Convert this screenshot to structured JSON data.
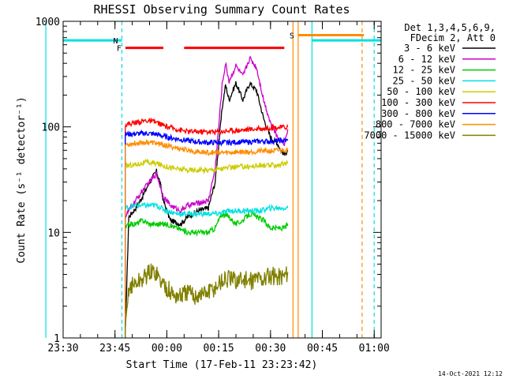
{
  "chart_data": {
    "type": "line",
    "title": "RHESSI Observing Summary Count Rates",
    "xlabel": "Start Time (17-Feb-11 23:23:42)",
    "ylabel": "Count Rate (s⁻¹ detector⁻¹)",
    "y_scale": "log",
    "ylim": [
      1,
      1000
    ],
    "xlim_minutes": [
      -30,
      62
    ],
    "x_ticks": [
      {
        "label": "23:30",
        "minutes": -30
      },
      {
        "label": "23:45",
        "minutes": -15
      },
      {
        "label": "00:00",
        "minutes": 0
      },
      {
        "label": "00:15",
        "minutes": 15
      },
      {
        "label": "00:30",
        "minutes": 30
      },
      {
        "label": "00:45",
        "minutes": 45
      },
      {
        "label": "01:00",
        "minutes": 60
      }
    ],
    "y_ticks": [
      "1",
      "10",
      "100",
      "1000"
    ],
    "legend": {
      "header": [
        "Det 1,3,4,5,6,9,",
        "FDecim 2, Att 0"
      ],
      "placement": "right"
    },
    "series": [
      {
        "name": "3 - 6 keV",
        "color": "#000000",
        "points": [
          [
            -12,
            1.2
          ],
          [
            -11,
            14
          ],
          [
            -9,
            17
          ],
          [
            -7,
            22
          ],
          [
            -5,
            30
          ],
          [
            -3,
            38
          ],
          [
            -2,
            30
          ],
          [
            -1,
            20
          ],
          [
            1,
            13
          ],
          [
            4,
            12
          ],
          [
            6,
            14
          ],
          [
            9,
            16
          ],
          [
            12,
            17
          ],
          [
            14,
            30
          ],
          [
            16,
            150
          ],
          [
            17,
            250
          ],
          [
            18,
            180
          ],
          [
            20,
            260
          ],
          [
            22,
            180
          ],
          [
            24,
            260
          ],
          [
            26,
            220
          ],
          [
            28,
            120
          ],
          [
            30,
            80
          ],
          [
            32,
            70
          ],
          [
            33,
            60
          ],
          [
            34,
            55
          ],
          [
            35,
            60
          ]
        ]
      },
      {
        "name": "6 - 12 keV",
        "color": "#cc00cc",
        "points": [
          [
            -12,
            14
          ],
          [
            -11,
            16
          ],
          [
            -9,
            20
          ],
          [
            -7,
            25
          ],
          [
            -5,
            30
          ],
          [
            -3,
            36
          ],
          [
            -2,
            28
          ],
          [
            -1,
            22
          ],
          [
            1,
            18
          ],
          [
            4,
            16
          ],
          [
            6,
            18
          ],
          [
            9,
            19
          ],
          [
            12,
            20
          ],
          [
            14,
            40
          ],
          [
            16,
            250
          ],
          [
            17,
            400
          ],
          [
            18,
            270
          ],
          [
            20,
            380
          ],
          [
            22,
            300
          ],
          [
            24,
            450
          ],
          [
            26,
            360
          ],
          [
            28,
            180
          ],
          [
            30,
            110
          ],
          [
            32,
            80
          ],
          [
            33,
            75
          ],
          [
            34,
            70
          ],
          [
            35,
            95
          ]
        ]
      },
      {
        "name": "12 - 25 keV",
        "color": "#00cc00",
        "points": [
          [
            -12,
            11
          ],
          [
            -11,
            12
          ],
          [
            -9,
            12
          ],
          [
            -7,
            13
          ],
          [
            -5,
            12
          ],
          [
            -3,
            12
          ],
          [
            0,
            12
          ],
          [
            3,
            11
          ],
          [
            6,
            10
          ],
          [
            9,
            10
          ],
          [
            12,
            10
          ],
          [
            14,
            11
          ],
          [
            15,
            13
          ],
          [
            16,
            15
          ],
          [
            18,
            14
          ],
          [
            20,
            12
          ],
          [
            22,
            13
          ],
          [
            24,
            15
          ],
          [
            26,
            14
          ],
          [
            28,
            13
          ],
          [
            30,
            11
          ],
          [
            32,
            11
          ],
          [
            34,
            11
          ],
          [
            35,
            12
          ]
        ]
      },
      {
        "name": "25 - 50 keV",
        "color": "#00e0e0",
        "points": [
          [
            -12,
            17
          ],
          [
            -9,
            18
          ],
          [
            -6,
            18
          ],
          [
            -3,
            18
          ],
          [
            0,
            16
          ],
          [
            3,
            15
          ],
          [
            6,
            15
          ],
          [
            9,
            15
          ],
          [
            12,
            15
          ],
          [
            15,
            15
          ],
          [
            18,
            16
          ],
          [
            21,
            16
          ],
          [
            24,
            16
          ],
          [
            27,
            16
          ],
          [
            30,
            17
          ],
          [
            33,
            17
          ],
          [
            35,
            17
          ]
        ]
      },
      {
        "name": "50 - 100 keV",
        "color": "#cccc00",
        "points": [
          [
            -12,
            43
          ],
          [
            -9,
            44
          ],
          [
            -6,
            46
          ],
          [
            -3,
            45
          ],
          [
            0,
            42
          ],
          [
            3,
            40
          ],
          [
            6,
            39
          ],
          [
            9,
            39
          ],
          [
            12,
            39
          ],
          [
            15,
            40
          ],
          [
            18,
            41
          ],
          [
            21,
            42
          ],
          [
            24,
            42
          ],
          [
            27,
            43
          ],
          [
            30,
            43
          ],
          [
            33,
            44
          ],
          [
            35,
            45
          ]
        ]
      },
      {
        "name": "100 - 300 keV",
        "color": "#ff0000",
        "points": [
          [
            -12,
            105
          ],
          [
            -9,
            110
          ],
          [
            -6,
            115
          ],
          [
            -3,
            110
          ],
          [
            0,
            100
          ],
          [
            3,
            95
          ],
          [
            6,
            90
          ],
          [
            9,
            90
          ],
          [
            12,
            90
          ],
          [
            15,
            90
          ],
          [
            18,
            92
          ],
          [
            21,
            93
          ],
          [
            24,
            95
          ],
          [
            27,
            96
          ],
          [
            30,
            98
          ],
          [
            33,
            99
          ],
          [
            35,
            100
          ]
        ]
      },
      {
        "name": "300 - 800 keV",
        "color": "#0000ff",
        "points": [
          [
            -12,
            85
          ],
          [
            -9,
            86
          ],
          [
            -6,
            87
          ],
          [
            -3,
            85
          ],
          [
            0,
            80
          ],
          [
            3,
            77
          ],
          [
            6,
            74
          ],
          [
            9,
            72
          ],
          [
            12,
            71
          ],
          [
            15,
            71
          ],
          [
            18,
            71
          ],
          [
            21,
            72
          ],
          [
            24,
            72
          ],
          [
            27,
            73
          ],
          [
            30,
            73
          ],
          [
            33,
            74
          ],
          [
            35,
            74
          ]
        ]
      },
      {
        "name": "800 - 7000 keV",
        "color": "#ff8c00",
        "points": [
          [
            -12,
            68
          ],
          [
            -9,
            70
          ],
          [
            -6,
            72
          ],
          [
            -3,
            70
          ],
          [
            0,
            66
          ],
          [
            3,
            63
          ],
          [
            6,
            60
          ],
          [
            9,
            58
          ],
          [
            12,
            57
          ],
          [
            15,
            57
          ],
          [
            18,
            57
          ],
          [
            21,
            58
          ],
          [
            24,
            58
          ],
          [
            27,
            59
          ],
          [
            30,
            59
          ],
          [
            33,
            60
          ],
          [
            35,
            61
          ]
        ]
      },
      {
        "name": "7000 - 15000 keV",
        "color": "#808000",
        "points": [
          [
            -12,
            1.1
          ],
          [
            -11,
            3
          ],
          [
            -9,
            3.3
          ],
          [
            -7,
            3.6
          ],
          [
            -5,
            4.2
          ],
          [
            -3,
            4.2
          ],
          [
            -2,
            3.5
          ],
          [
            0,
            3.0
          ],
          [
            2,
            2.5
          ],
          [
            4,
            2.5
          ],
          [
            6,
            2.7
          ],
          [
            8,
            2.5
          ],
          [
            10,
            2.6
          ],
          [
            12,
            2.7
          ],
          [
            14,
            3.0
          ],
          [
            16,
            3.5
          ],
          [
            18,
            3.6
          ],
          [
            20,
            3.5
          ],
          [
            22,
            3.6
          ],
          [
            24,
            3.4
          ],
          [
            26,
            3.7
          ],
          [
            28,
            3.6
          ],
          [
            30,
            3.9
          ],
          [
            32,
            3.8
          ],
          [
            34,
            3.9
          ],
          [
            35,
            4.2
          ]
        ]
      }
    ],
    "state_bars": [
      {
        "label": "",
        "color": "#00e0e0",
        "y": 660,
        "x_start": -35,
        "x_end": -13
      },
      {
        "label": "N",
        "color": "#00e0e0",
        "y": 660,
        "x_start": -13,
        "x_end": -13
      },
      {
        "label": "F",
        "color": "#ff0000",
        "y": 560,
        "x_start": -12,
        "x_end": -1
      },
      {
        "label": "",
        "color": "#ff0000",
        "y": 560,
        "x_start": 5,
        "x_end": 34
      },
      {
        "label": "S",
        "color": "#ff8c00",
        "y": 740,
        "x_start": 38,
        "x_end": 57
      },
      {
        "label": "",
        "color": "#00e0e0",
        "y": 660,
        "x_start": 42,
        "x_end": 62
      }
    ],
    "vertical_markers": [
      {
        "minutes": -35,
        "color": "#00e0e0",
        "style": "solid"
      },
      {
        "minutes": -13,
        "color": "#00e0e0",
        "style": "dashed"
      },
      {
        "minutes": 36.5,
        "color": "#ff8c00",
        "style": "solid"
      },
      {
        "minutes": 38,
        "color": "#ff8c00",
        "style": "solid"
      },
      {
        "minutes": 42,
        "color": "#00e0e0",
        "style": "solid"
      },
      {
        "minutes": 56.5,
        "color": "#ff8c00",
        "style": "dashed"
      },
      {
        "minutes": 60,
        "color": "#00e0e0",
        "style": "dashed"
      }
    ]
  },
  "footer": {
    "timestamp": "14-Oct-2021 12:12"
  }
}
